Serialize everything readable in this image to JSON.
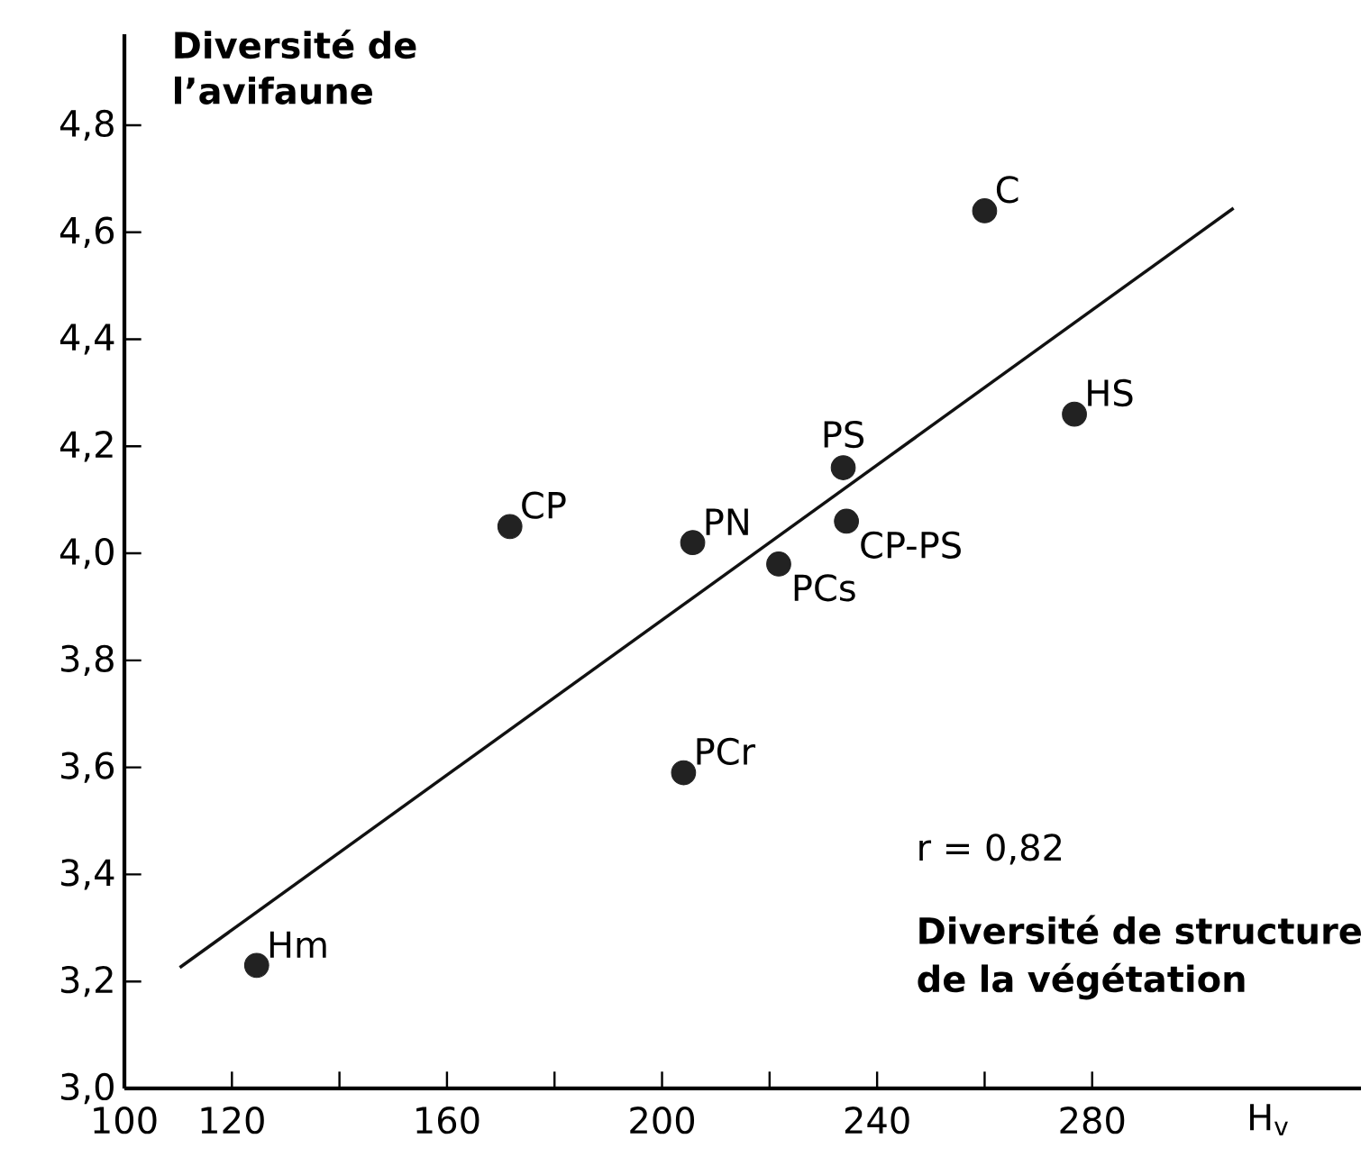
{
  "chart_data": {
    "type": "scatter",
    "xlabel": "H$_{v}$",
    "ylabel": "**Diversité de l’avifaune**",
    "annotations": [
      "r = 0,82",
      "**Diversité de structure de la végétation**"
    ],
    "xlim": [
      100,
      330
    ],
    "ylim": [
      3.0,
      4.97
    ],
    "xticks": [
      100,
      120,
      {
        "value": 140,
        "label": null
      },
      160,
      {
        "value": 180,
        "label": null
      },
      200,
      {
        "value": 220,
        "label": null
      },
      240,
      {
        "value": 260,
        "label": null
      },
      280
    ],
    "yticks": [
      {
        "value": 3.0,
        "label": "3,0"
      },
      {
        "value": 3.2,
        "label": "3,2"
      },
      {
        "value": 3.4,
        "label": "3,4"
      },
      {
        "value": 3.6,
        "label": "3,6"
      },
      {
        "value": 3.8,
        "label": "3,8"
      },
      {
        "value": 4.0,
        "label": "4,0"
      },
      {
        "value": 4.2,
        "label": "4,2"
      },
      {
        "value": 4.4,
        "label": "4,4"
      },
      {
        "value": 4.6,
        "label": "4,6"
      },
      {
        "value": 4.8,
        "label": "4,8"
      }
    ],
    "grid": false,
    "legend": false,
    "series": [
      {
        "name": "Hm",
        "color": "#222222",
        "marker": "circle",
        "x": [
          124.6
        ],
        "values": [
          3.23
        ]
      },
      {
        "name": "CP",
        "color": "#222222",
        "marker": "circle",
        "x": [
          171.7
        ],
        "values": [
          4.05
        ]
      },
      {
        "name": "PCr",
        "color": "#222222",
        "marker": "circle",
        "x": [
          204
        ],
        "values": [
          3.59
        ]
      },
      {
        "name": "PN",
        "color": "#222222",
        "marker": "circle",
        "x": [
          205.7
        ],
        "values": [
          4.02
        ]
      },
      {
        "name": "PCs",
        "color": "#222222",
        "marker": "circle",
        "x": [
          221.7
        ],
        "values": [
          3.98
        ]
      },
      {
        "name": "PS",
        "color": "#222222",
        "marker": "circle",
        "x": [
          233.7
        ],
        "values": [
          4.16
        ]
      },
      {
        "name": "CP-PS",
        "color": "#222222",
        "marker": "circle",
        "x": [
          234.3
        ],
        "values": [
          4.06
        ]
      },
      {
        "name": "C",
        "color": "#222222",
        "marker": "circle",
        "x": [
          260
        ],
        "values": [
          4.64
        ]
      },
      {
        "name": "HS",
        "color": "#222222",
        "marker": "circle",
        "x": [
          276.7
        ],
        "values": [
          4.26
        ]
      },
      {
        "type": "line",
        "color": "#111111",
        "line_style": "solid",
        "marker": "none",
        "x": [
          110.3,
          306.3
        ],
        "values": [
          3.226,
          4.645
        ]
      }
    ]
  }
}
